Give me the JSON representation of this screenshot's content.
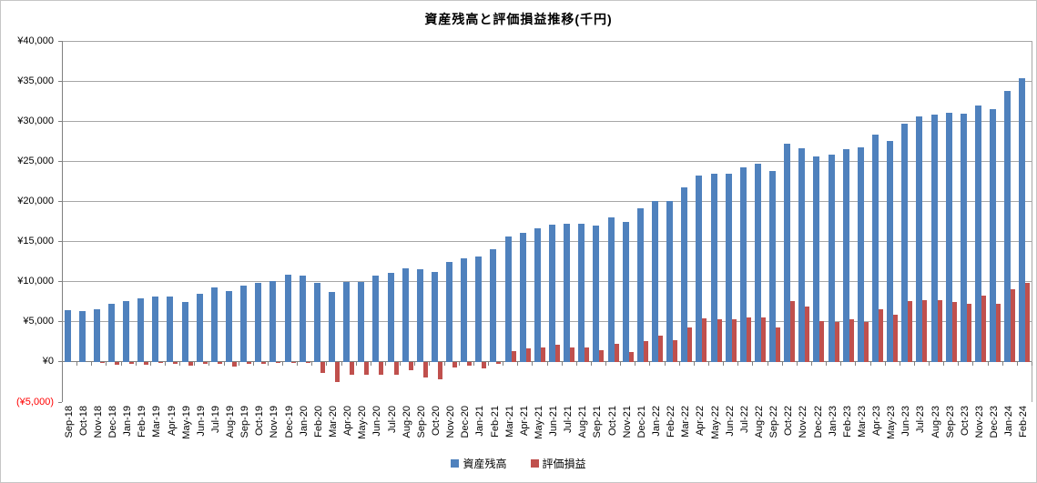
{
  "title": "資産残高と評価損益推移(千円)",
  "colors": {
    "asset": "#4f81bd",
    "profit_loss": "#c0504d",
    "gridline": "#a6a6a6",
    "axis": "#808080",
    "negative_label": "#ff0000",
    "text": "#000000"
  },
  "y_axis": {
    "tick_labels_top_to_bottom": [
      "¥40,000",
      "¥35,000",
      "¥30,000",
      "¥25,000",
      "¥20,000",
      "¥15,000",
      "¥10,000",
      "¥5,000",
      "¥0",
      "(¥5,000)"
    ],
    "max": 40000,
    "min": -5000,
    "step": 5000
  },
  "legend": [
    {
      "label": "資産残高",
      "color": "#4f81bd"
    },
    {
      "label": "評価損益",
      "color": "#c0504d"
    }
  ],
  "chart_data": {
    "type": "bar",
    "title": "資産残高と評価損益推移(千円)",
    "xlabel": "",
    "ylabel": "",
    "ylim": [
      -5000,
      40000
    ],
    "grid": true,
    "legend_position": "bottom",
    "categories": [
      "Sep-18",
      "Oct-18",
      "Nov-18",
      "Dec-18",
      "Jan-19",
      "Feb-19",
      "Mar-19",
      "Apr-19",
      "May-19",
      "Jun-19",
      "Jul-19",
      "Aug-19",
      "Sep-19",
      "Oct-19",
      "Nov-19",
      "Dec-19",
      "Jan-20",
      "Feb-20",
      "Mar-20",
      "Apr-20",
      "May-20",
      "Jun-20",
      "Jul-20",
      "Aug-20",
      "Sep-20",
      "Oct-20",
      "Nov-20",
      "Dec-20",
      "Jan-21",
      "Feb-21",
      "Mar-21",
      "Apr-21",
      "May-21",
      "Jun-21",
      "Jul-21",
      "Aug-21",
      "Sep-21",
      "Oct-21",
      "Nov-21",
      "Dec-21",
      "Jan-22",
      "Feb-22",
      "Mar-22",
      "Apr-22",
      "May-22",
      "Jun-22",
      "Jul-22",
      "Aug-22",
      "Sep-22",
      "Oct-22",
      "Nov-22",
      "Dec-22",
      "Jan-23",
      "Feb-23",
      "Mar-23",
      "Apr-23",
      "May-23",
      "Jun-23",
      "Jul-23",
      "Aug-23",
      "Sep-23",
      "Oct-23",
      "Nov-23",
      "Dec-23",
      "Jan-24",
      "Feb-24"
    ],
    "series": [
      {
        "name": "資産残高",
        "color": "#4f81bd",
        "values": [
          6400,
          6300,
          6600,
          7200,
          7600,
          7900,
          8100,
          8100,
          7500,
          8500,
          9300,
          8800,
          9500,
          9900,
          10100,
          10900,
          10800,
          9900,
          8700,
          10000,
          10000,
          10700,
          11100,
          11700,
          11500,
          11200,
          12400,
          12900,
          13100,
          14000,
          15600,
          16100,
          16600,
          17100,
          17200,
          17200,
          17000,
          18000,
          17400,
          19100,
          20000,
          20000,
          21800,
          23200,
          23400,
          23500,
          24200,
          24700,
          23800,
          27200,
          26600,
          25600,
          25800,
          26500,
          26700,
          28300,
          27500,
          29700,
          30600,
          30800,
          31000,
          30900,
          32000,
          31500,
          33800,
          35300
        ]
      },
      {
        "name": "評価損益",
        "color": "#c0504d",
        "values": [
          0,
          0,
          -100,
          -400,
          -250,
          -300,
          -150,
          -250,
          -500,
          -250,
          -200,
          -600,
          -250,
          -250,
          -100,
          -150,
          -150,
          -1400,
          -2500,
          -1650,
          -1550,
          -1650,
          -1550,
          -1050,
          -1900,
          -2200,
          -700,
          -500,
          -850,
          -250,
          1350,
          1650,
          1800,
          2100,
          1800,
          1800,
          1500,
          2200,
          1250,
          2650,
          3300,
          2700,
          4300,
          5400,
          5350,
          5300,
          5550,
          5500,
          4350,
          7600,
          6900,
          5100,
          5000,
          5300,
          5000,
          6600,
          5850,
          7550,
          7750,
          7750,
          7500,
          7250,
          8300,
          7200,
          9100,
          9900
        ]
      }
    ]
  }
}
